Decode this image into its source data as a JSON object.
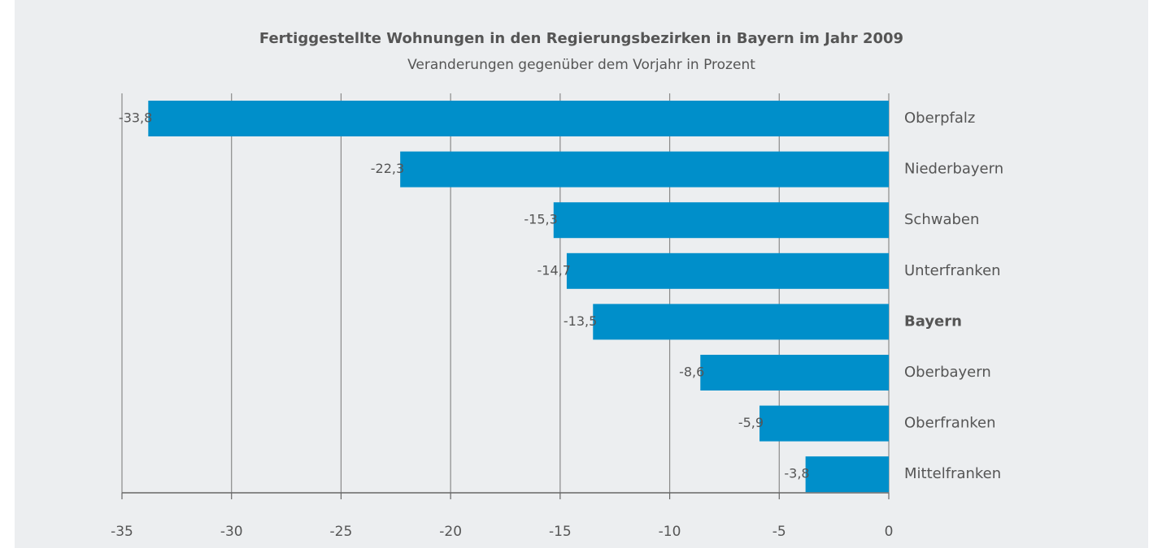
{
  "chart_data": {
    "type": "bar",
    "orientation": "horizontal",
    "title": "Fertiggestellte Wohnungen in den Regierungsbezirken in Bayern im Jahr 2009",
    "subtitle": "Veranderungen gegenüber dem Vorjahr in Prozent",
    "categories": [
      "Oberpfalz",
      "Niederbayern",
      "Schwaben",
      "Unterfranken",
      "Bayern",
      "Oberbayern",
      "Oberfranken",
      "Mittelfranken"
    ],
    "values": [
      -33.8,
      -22.3,
      -15.3,
      -14.7,
      -13.5,
      -8.6,
      -5.9,
      -3.8
    ],
    "value_labels": [
      "-33,8",
      "-22,3",
      "-15,3",
      "-14,7",
      "-13,5",
      "-8,6",
      "-5,9",
      "-3,8"
    ],
    "highlight_index": 4,
    "color": "#008fca",
    "xlim": [
      -35,
      0
    ],
    "xticks": [
      -35,
      -30,
      -25,
      -20,
      -15,
      -10,
      -5,
      0
    ],
    "grid": true
  }
}
